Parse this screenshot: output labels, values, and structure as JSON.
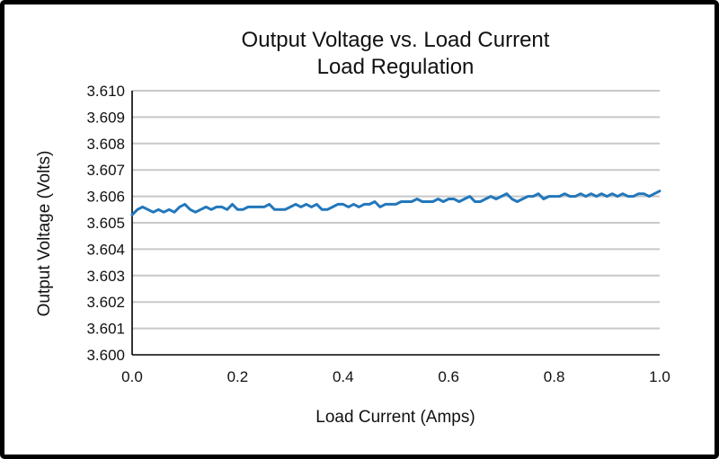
{
  "chart_data": {
    "type": "line",
    "title": "Output Voltage vs. Load Current",
    "subtitle": "Load Regulation",
    "xlabel": "Load Current (Amps)",
    "ylabel": "Output Voltage (Volts)",
    "xlim": [
      0.0,
      1.0
    ],
    "ylim": [
      3.6,
      3.61
    ],
    "x_ticks": [
      "0.0",
      "0.2",
      "0.4",
      "0.6",
      "0.8",
      "1.0"
    ],
    "y_ticks": [
      "3.600",
      "3.601",
      "3.602",
      "3.603",
      "3.604",
      "3.605",
      "3.606",
      "3.607",
      "3.608",
      "3.609",
      "3.610"
    ],
    "grid": "horizontal",
    "line_color": "#2277bb",
    "series": [
      {
        "x": [
          0.0,
          0.01,
          0.02,
          0.03,
          0.04,
          0.05,
          0.06,
          0.07,
          0.08,
          0.09,
          0.1,
          0.11,
          0.12,
          0.13,
          0.14,
          0.15,
          0.16,
          0.17,
          0.18,
          0.19,
          0.2,
          0.21,
          0.22,
          0.23,
          0.24,
          0.25,
          0.26,
          0.27,
          0.28,
          0.29,
          0.3,
          0.31,
          0.32,
          0.33,
          0.34,
          0.35,
          0.36,
          0.37,
          0.38,
          0.39,
          0.4,
          0.41,
          0.42,
          0.43,
          0.44,
          0.45,
          0.46,
          0.47,
          0.48,
          0.49,
          0.5,
          0.51,
          0.52,
          0.53,
          0.54,
          0.55,
          0.56,
          0.57,
          0.58,
          0.59,
          0.6,
          0.61,
          0.62,
          0.63,
          0.64,
          0.65,
          0.66,
          0.67,
          0.68,
          0.69,
          0.7,
          0.71,
          0.72,
          0.73,
          0.74,
          0.75,
          0.76,
          0.77,
          0.78,
          0.79,
          0.8,
          0.81,
          0.82,
          0.83,
          0.84,
          0.85,
          0.86,
          0.87,
          0.88,
          0.89,
          0.9,
          0.91,
          0.92,
          0.93,
          0.94,
          0.95,
          0.96,
          0.97,
          0.98,
          0.99,
          1.0
        ],
        "y": [
          3.6053,
          3.6055,
          3.6056,
          3.6055,
          3.6054,
          3.6055,
          3.6054,
          3.6055,
          3.6054,
          3.6056,
          3.6057,
          3.6055,
          3.6054,
          3.6055,
          3.6056,
          3.6055,
          3.6056,
          3.6056,
          3.6055,
          3.6057,
          3.6055,
          3.6055,
          3.6056,
          3.6056,
          3.6056,
          3.6056,
          3.6057,
          3.6055,
          3.6055,
          3.6055,
          3.6056,
          3.6057,
          3.6056,
          3.6057,
          3.6056,
          3.6057,
          3.6055,
          3.6055,
          3.6056,
          3.6057,
          3.6057,
          3.6056,
          3.6057,
          3.6056,
          3.6057,
          3.6057,
          3.6058,
          3.6056,
          3.6057,
          3.6057,
          3.6057,
          3.6058,
          3.6058,
          3.6058,
          3.6059,
          3.6058,
          3.6058,
          3.6058,
          3.6059,
          3.6058,
          3.6059,
          3.6059,
          3.6058,
          3.6059,
          3.606,
          3.6058,
          3.6058,
          3.6059,
          3.606,
          3.6059,
          3.606,
          3.6061,
          3.6059,
          3.6058,
          3.6059,
          3.606,
          3.606,
          3.6061,
          3.6059,
          3.606,
          3.606,
          3.606,
          3.6061,
          3.606,
          3.606,
          3.6061,
          3.606,
          3.6061,
          3.606,
          3.6061,
          3.606,
          3.6061,
          3.606,
          3.6061,
          3.606,
          3.606,
          3.6061,
          3.6061,
          3.606,
          3.6061,
          3.6062
        ]
      }
    ]
  }
}
